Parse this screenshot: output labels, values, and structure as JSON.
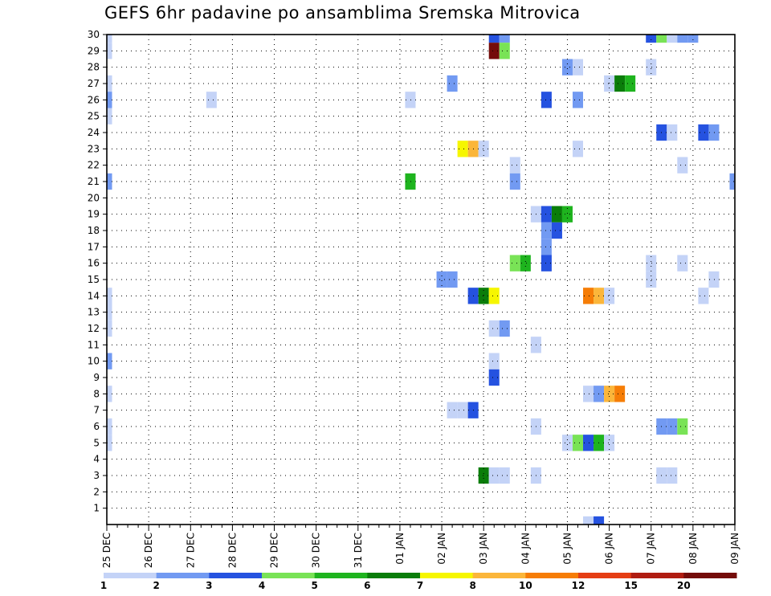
{
  "chart_data": {
    "type": "heatmap",
    "title": "GEFS 6hr padavine po ansamblima Sremska Mitrovica",
    "xlabel": "",
    "ylabel": "",
    "x_tick_labels": [
      "25 DEC",
      "26 DEC",
      "27 DEC",
      "28 DEC",
      "29 DEC",
      "30 DEC",
      "31 DEC",
      "01 JAN",
      "02 JAN",
      "03 JAN",
      "04 JAN",
      "05 JAN",
      "06 JAN",
      "07 JAN",
      "08 JAN",
      "09 JAN"
    ],
    "x_range_steps": [
      0,
      60
    ],
    "steps_per_day": 4,
    "y_tick_labels": [
      "1",
      "2",
      "3",
      "4",
      "5",
      "6",
      "7",
      "8",
      "9",
      "10",
      "11",
      "12",
      "13",
      "14",
      "15",
      "16",
      "17",
      "18",
      "19",
      "20",
      "21",
      "22",
      "23",
      "24",
      "25",
      "26",
      "27",
      "28",
      "29",
      "30"
    ],
    "y_range": [
      0,
      30
    ],
    "grid": true,
    "color_scale": {
      "colors": [
        "#c4d3f7",
        "#729af2",
        "#2552e0",
        "#79e356",
        "#1eb41e",
        "#0a7d0a",
        "#f6f600",
        "#fbb63a",
        "#f67d06",
        "#e53e14",
        "#b01c11",
        "#740c0a"
      ],
      "bound_labels": [
        "1",
        "2",
        "3",
        "4",
        "5",
        "6",
        "7",
        "8",
        "10",
        "12",
        "15",
        "20"
      ]
    },
    "cells": [
      [
        0,
        30,
        0
      ],
      [
        37,
        30,
        2
      ],
      [
        38,
        30,
        1
      ],
      [
        52,
        30,
        2
      ],
      [
        53,
        30,
        3
      ],
      [
        54,
        30,
        0
      ],
      [
        55,
        30,
        1
      ],
      [
        56,
        30,
        1
      ],
      [
        0,
        29,
        0
      ],
      [
        37,
        29,
        11
      ],
      [
        38,
        29,
        3
      ],
      [
        44,
        28,
        1
      ],
      [
        45,
        28,
        0
      ],
      [
        52,
        28,
        0
      ],
      [
        0,
        27,
        0
      ],
      [
        33,
        27,
        1
      ],
      [
        48,
        27,
        0
      ],
      [
        49,
        27,
        5
      ],
      [
        50,
        27,
        4
      ],
      [
        0,
        26,
        1
      ],
      [
        10,
        26,
        0
      ],
      [
        29,
        26,
        0
      ],
      [
        42,
        26,
        2
      ],
      [
        45,
        26,
        1
      ],
      [
        0,
        25,
        0
      ],
      [
        53,
        24,
        2
      ],
      [
        54,
        24,
        0
      ],
      [
        57,
        24,
        2
      ],
      [
        58,
        24,
        1
      ],
      [
        34,
        23,
        6
      ],
      [
        35,
        23,
        7
      ],
      [
        36,
        23,
        0
      ],
      [
        45,
        23,
        0
      ],
      [
        39,
        22,
        0
      ],
      [
        55,
        22,
        0
      ],
      [
        0,
        21,
        1
      ],
      [
        29,
        21,
        4
      ],
      [
        39,
        21,
        1
      ],
      [
        60,
        21,
        1
      ],
      [
        41,
        19,
        0
      ],
      [
        42,
        19,
        2
      ],
      [
        43,
        19,
        5
      ],
      [
        44,
        19,
        4
      ],
      [
        42,
        18,
        1
      ],
      [
        43,
        18,
        2
      ],
      [
        42,
        17,
        1
      ],
      [
        39,
        16,
        3
      ],
      [
        40,
        16,
        4
      ],
      [
        42,
        16,
        2
      ],
      [
        52,
        16,
        0
      ],
      [
        55,
        16,
        0
      ],
      [
        32,
        15,
        1
      ],
      [
        33,
        15,
        1
      ],
      [
        52,
        15,
        0
      ],
      [
        58,
        15,
        0
      ],
      [
        0,
        14,
        0
      ],
      [
        35,
        14,
        2
      ],
      [
        36,
        14,
        5
      ],
      [
        37,
        14,
        6
      ],
      [
        46,
        14,
        8
      ],
      [
        47,
        14,
        7
      ],
      [
        48,
        14,
        0
      ],
      [
        57,
        14,
        0
      ],
      [
        0,
        13,
        0
      ],
      [
        0,
        12,
        0
      ],
      [
        37,
        12,
        0
      ],
      [
        38,
        12,
        1
      ],
      [
        41,
        11,
        0
      ],
      [
        0,
        10,
        1
      ],
      [
        37,
        10,
        0
      ],
      [
        37,
        9,
        2
      ],
      [
        0,
        8,
        0
      ],
      [
        46,
        8,
        0
      ],
      [
        47,
        8,
        1
      ],
      [
        48,
        8,
        7
      ],
      [
        49,
        8,
        8
      ],
      [
        33,
        7,
        0
      ],
      [
        34,
        7,
        0
      ],
      [
        35,
        7,
        2
      ],
      [
        0,
        6,
        0
      ],
      [
        41,
        6,
        0
      ],
      [
        53,
        6,
        1
      ],
      [
        54,
        6,
        1
      ],
      [
        55,
        6,
        3
      ],
      [
        0,
        5,
        0
      ],
      [
        44,
        5,
        0
      ],
      [
        45,
        5,
        3
      ],
      [
        46,
        5,
        2
      ],
      [
        47,
        5,
        4
      ],
      [
        48,
        5,
        0
      ],
      [
        36,
        3,
        5
      ],
      [
        37,
        3,
        0
      ],
      [
        38,
        3,
        0
      ],
      [
        41,
        3,
        0
      ],
      [
        53,
        3,
        0
      ],
      [
        54,
        3,
        0
      ],
      [
        46,
        0,
        0
      ],
      [
        47,
        0,
        2
      ]
    ]
  }
}
